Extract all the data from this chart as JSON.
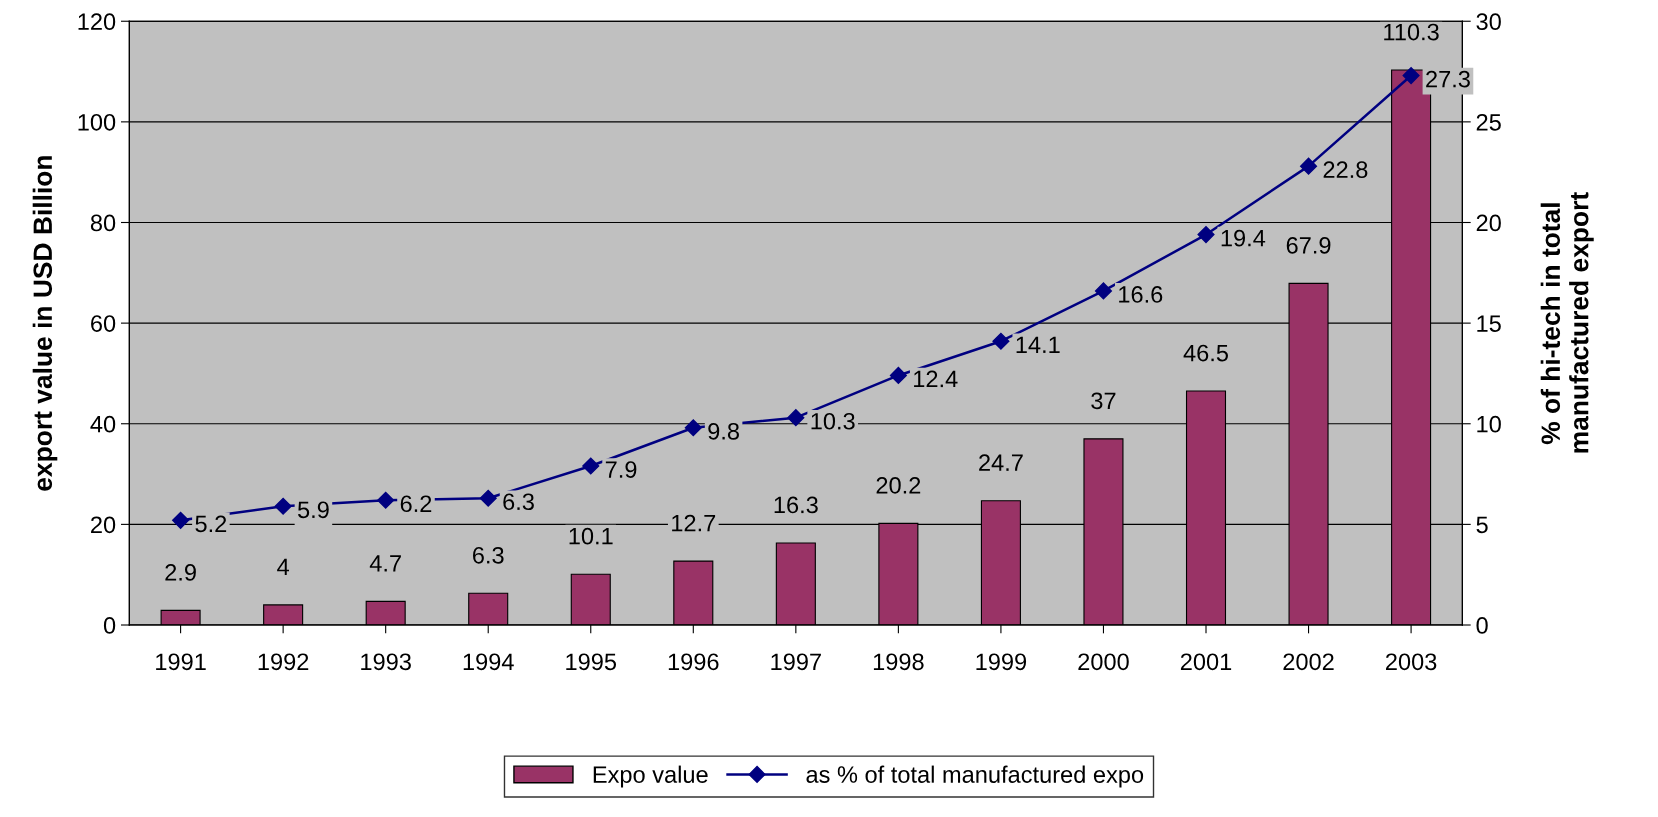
{
  "chart_data": {
    "type": "bar",
    "categories": [
      "1991",
      "1992",
      "1993",
      "1994",
      "1995",
      "1996",
      "1997",
      "1998",
      "1999",
      "2000",
      "2001",
      "2002",
      "2003"
    ],
    "series": [
      {
        "name": "Expo value",
        "color": "#993366",
        "values": [
          2.9,
          4,
          4.7,
          6.3,
          10.1,
          12.7,
          16.3,
          20.2,
          24.7,
          37,
          46.5,
          67.9,
          110.3
        ]
      },
      {
        "name": "as % of total manufactured expo",
        "type": "line",
        "axis": "y2",
        "color": "#000080",
        "marker": "diamond",
        "values": [
          5.2,
          5.9,
          6.2,
          6.3,
          7.9,
          9.8,
          10.3,
          12.4,
          14.1,
          16.6,
          19.4,
          22.8,
          27.3
        ]
      }
    ],
    "ylabel": "export value in USD Billion",
    "y2label": "% of hi-tech in total\nmanufactured export",
    "ylim": [
      0,
      120
    ],
    "yticks": [
      0,
      20,
      40,
      60,
      80,
      100,
      120
    ],
    "y2lim": [
      0,
      30
    ],
    "y2ticks": [
      0,
      5,
      10,
      15,
      20,
      25,
      30
    ],
    "grid": "y",
    "legend": "bottom",
    "data_labels": true
  }
}
